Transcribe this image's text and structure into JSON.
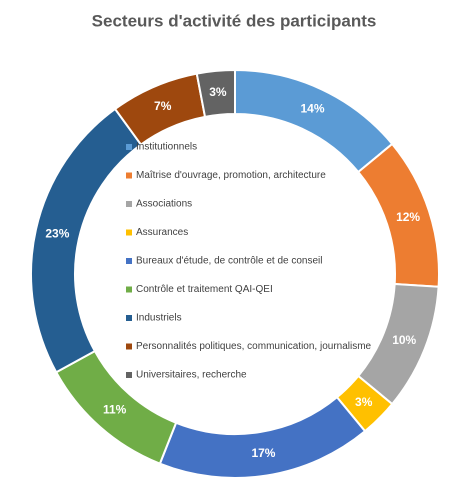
{
  "chart_data": {
    "type": "donut",
    "title": "Secteurs d'activité des participants",
    "categories": [
      "Institutionnels",
      "Maîtrise d'ouvrage, promotion, architecture",
      "Associations",
      "Assurances",
      "Bureaux d'étude, de contrôle et de conseil",
      "Contrôle et traitement QAI-QEI",
      "Industriels",
      "Personnalités politiques, communication, journalisme",
      "Universitaires, recherche"
    ],
    "values": [
      14,
      12,
      10,
      3,
      17,
      11,
      23,
      7,
      3
    ],
    "value_labels": [
      "14%",
      "12%",
      "10%",
      "3%",
      "17%",
      "11%",
      "23%",
      "7%",
      "3%"
    ],
    "colors": [
      "#5b9bd5",
      "#ed7d31",
      "#a5a5a5",
      "#ffc000",
      "#4472c4",
      "#70ad47",
      "#255e91",
      "#9e480e",
      "#636363"
    ]
  }
}
